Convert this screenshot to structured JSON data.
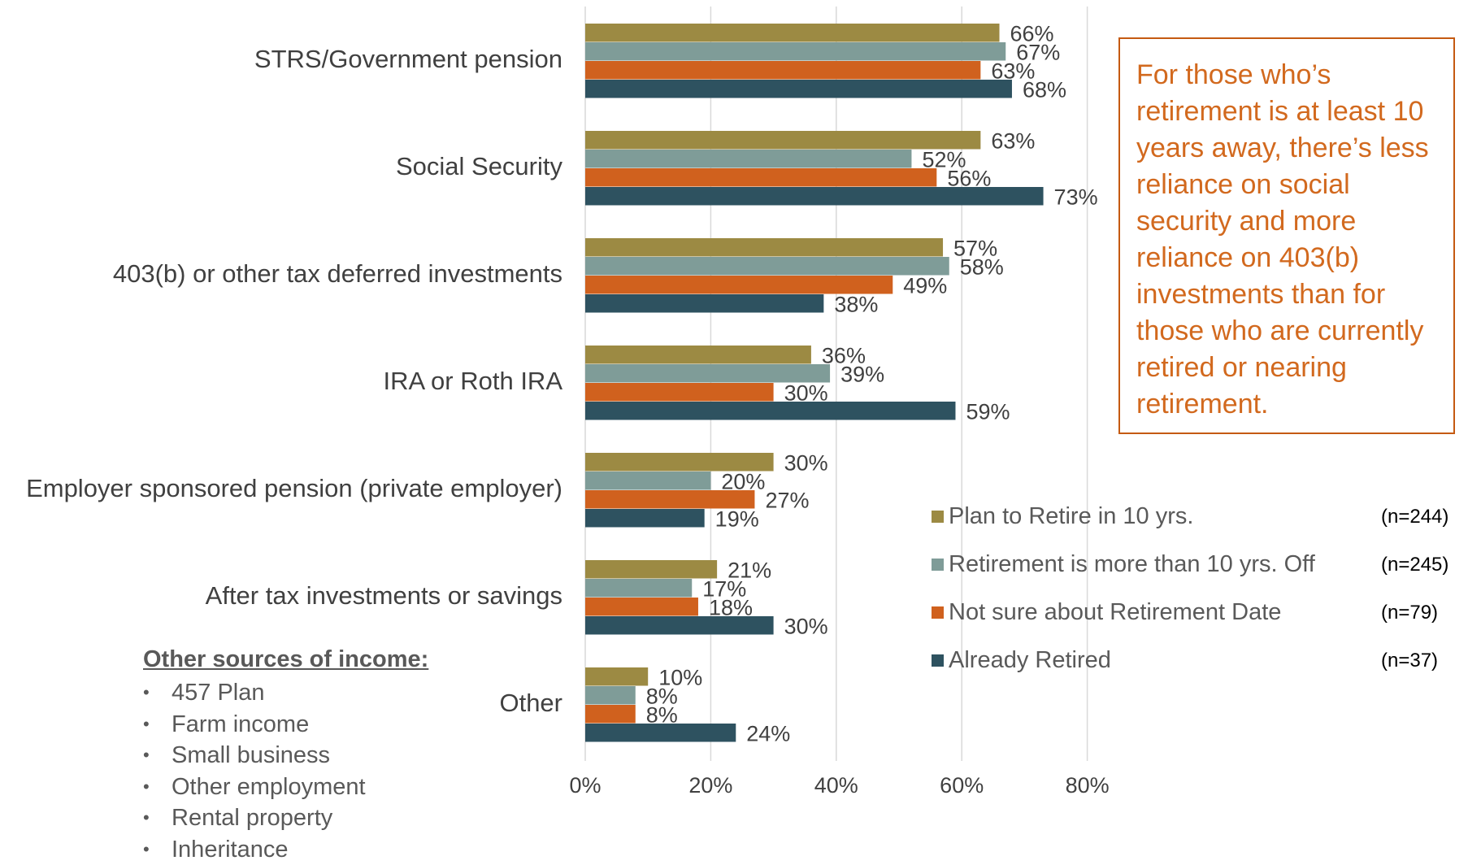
{
  "chart_data": {
    "type": "bar",
    "orientation": "horizontal",
    "categories": [
      "STRS/Government pension",
      "Social Security",
      "403(b) or other tax deferred investments",
      "IRA or Roth IRA",
      "Employer sponsored pension (private employer)",
      "After tax investments or savings",
      "Other"
    ],
    "series": [
      {
        "name": "Plan to Retire in 10 yrs.",
        "n_label": "(n=244)",
        "color": "#9C8A43",
        "values": [
          66,
          63,
          57,
          36,
          30,
          21,
          10
        ],
        "labels": [
          "66%",
          "63%",
          "57%",
          "36%",
          "30%",
          "21%",
          "10%"
        ]
      },
      {
        "name": "Retirement is more than 10 yrs. Off",
        "n_label": "(n=245)",
        "color": "#7F9C98",
        "values": [
          67,
          52,
          58,
          39,
          20,
          17,
          8
        ],
        "labels": [
          "67%",
          "52%",
          "58%",
          "39%",
          "20%",
          "17%",
          "8%"
        ]
      },
      {
        "name": "Not sure about Retirement Date",
        "n_label": "(n=79)",
        "color": "#D0611E",
        "values": [
          63,
          56,
          49,
          30,
          27,
          18,
          8
        ],
        "labels": [
          "63%",
          "56%",
          "49%",
          "30%",
          "27%",
          "18%",
          "8%"
        ]
      },
      {
        "name": "Already Retired",
        "n_label": "(n=37)",
        "color": "#2E5260",
        "values": [
          68,
          73,
          38,
          59,
          19,
          30,
          24
        ],
        "labels": [
          "68%",
          "73%",
          "38%",
          "59%",
          "19%",
          "30%",
          "24%"
        ]
      }
    ],
    "xlim": [
      0,
      80
    ],
    "x_ticks": [
      0,
      20,
      40,
      60,
      80
    ],
    "x_tick_labels": [
      "0%",
      "20%",
      "40%",
      "60%",
      "80%"
    ],
    "grid": true,
    "legend_position": "bottom-right"
  },
  "callout": {
    "text": "For those who’s retirement is at least 10 years away, there’s less reliance on social security and more reliance on 403(b) investments than for those who are currently retired or nearing retirement."
  },
  "other_sources": {
    "title": "Other sources of income:",
    "items": [
      "457 Plan",
      "Farm income",
      "Small business",
      "Other employment",
      "Rental property",
      "Inheritance"
    ]
  }
}
